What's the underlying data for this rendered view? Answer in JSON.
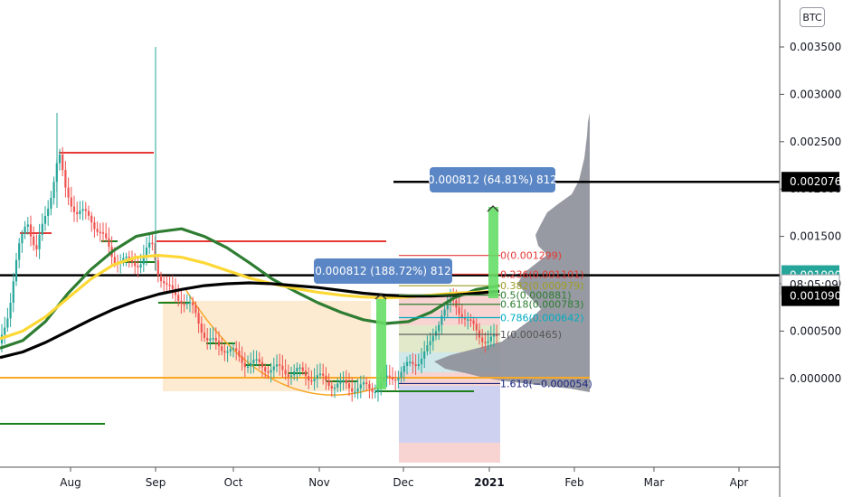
{
  "chart_data": {
    "type": "candlestick",
    "currency_badge": "BTC",
    "x_ticks": [
      "Aug",
      "Sep",
      "Oct",
      "Nov",
      "Dec",
      "2021",
      "Feb",
      "Mar",
      "Apr"
    ],
    "y_ticks": [
      "0.003500",
      "0.003000",
      "0.002500",
      "0.002000",
      "0.001500",
      "0.001000",
      "0.000500",
      "0.000000"
    ],
    "ylim": [
      -0.0002,
      0.004
    ],
    "price_tags": [
      {
        "value": 0.002076,
        "label": "0.002076",
        "style": "black"
      },
      {
        "value": 0.00109,
        "label": "0.001090",
        "style": "green"
      },
      {
        "value": 0.00099,
        "label": "08:05:09",
        "style": "white"
      },
      {
        "value": 0.00087,
        "label": "0.001090",
        "style": "black"
      }
    ],
    "horizontal_lines": [
      0.002076,
      0.00109
    ],
    "measure_labels": [
      "0.000812 (188.72%) 812",
      "0.000812 (64.81%) 812"
    ],
    "fib_levels": [
      {
        "label": "0(0.001299)",
        "value": 0.001299,
        "color": "#e53935"
      },
      {
        "label": "0.236(0.001101)",
        "value": 0.001101,
        "color": "#e53935"
      },
      {
        "label": "0.382(0.000979)",
        "value": 0.000979,
        "color": "#9e9d24"
      },
      {
        "label": "0.5(0.000881)",
        "value": 0.000881,
        "color": "#2e7d32"
      },
      {
        "label": "0.618(0.000783)",
        "value": 0.000783,
        "color": "#2e7d32"
      },
      {
        "label": "0.786(0.000642)",
        "value": 0.000642,
        "color": "#00acc1"
      },
      {
        "label": "1(0.000465)",
        "value": 0.000465,
        "color": "#555555"
      },
      {
        "label": "1.618(−0.000054)",
        "value": -5.4e-05,
        "color": "#1a237e"
      }
    ],
    "moving_averages": [
      {
        "color": "#2e7d32",
        "values": [
          0.00032,
          0.0004,
          0.0006,
          0.0009,
          0.00115,
          0.00135,
          0.0015,
          0.00155,
          0.00158,
          0.0015,
          0.00138,
          0.00122,
          0.00105,
          0.00092,
          0.0008,
          0.0007,
          0.00062,
          0.00058,
          0.0006,
          0.0007,
          0.00085,
          0.00094,
          0.00098
        ]
      },
      {
        "color": "#fdd835",
        "values": [
          0.00042,
          0.0005,
          0.00065,
          0.00085,
          0.00105,
          0.0012,
          0.00128,
          0.0013,
          0.00128,
          0.00122,
          0.00114,
          0.00106,
          0.001,
          0.00095,
          0.00091,
          0.00088,
          0.00086,
          0.00085,
          0.00086,
          0.00088,
          0.0009,
          0.00091,
          0.00092
        ]
      },
      {
        "color": "#000000",
        "values": [
          0.00022,
          0.00028,
          0.00038,
          0.0005,
          0.00062,
          0.00073,
          0.00082,
          0.00089,
          0.00094,
          0.00098,
          0.001,
          0.00101,
          0.001,
          0.00098,
          0.00096,
          0.00093,
          0.0009,
          0.00088,
          0.00087,
          0.00087,
          0.00088,
          0.0009,
          0.00092
        ]
      }
    ]
  }
}
